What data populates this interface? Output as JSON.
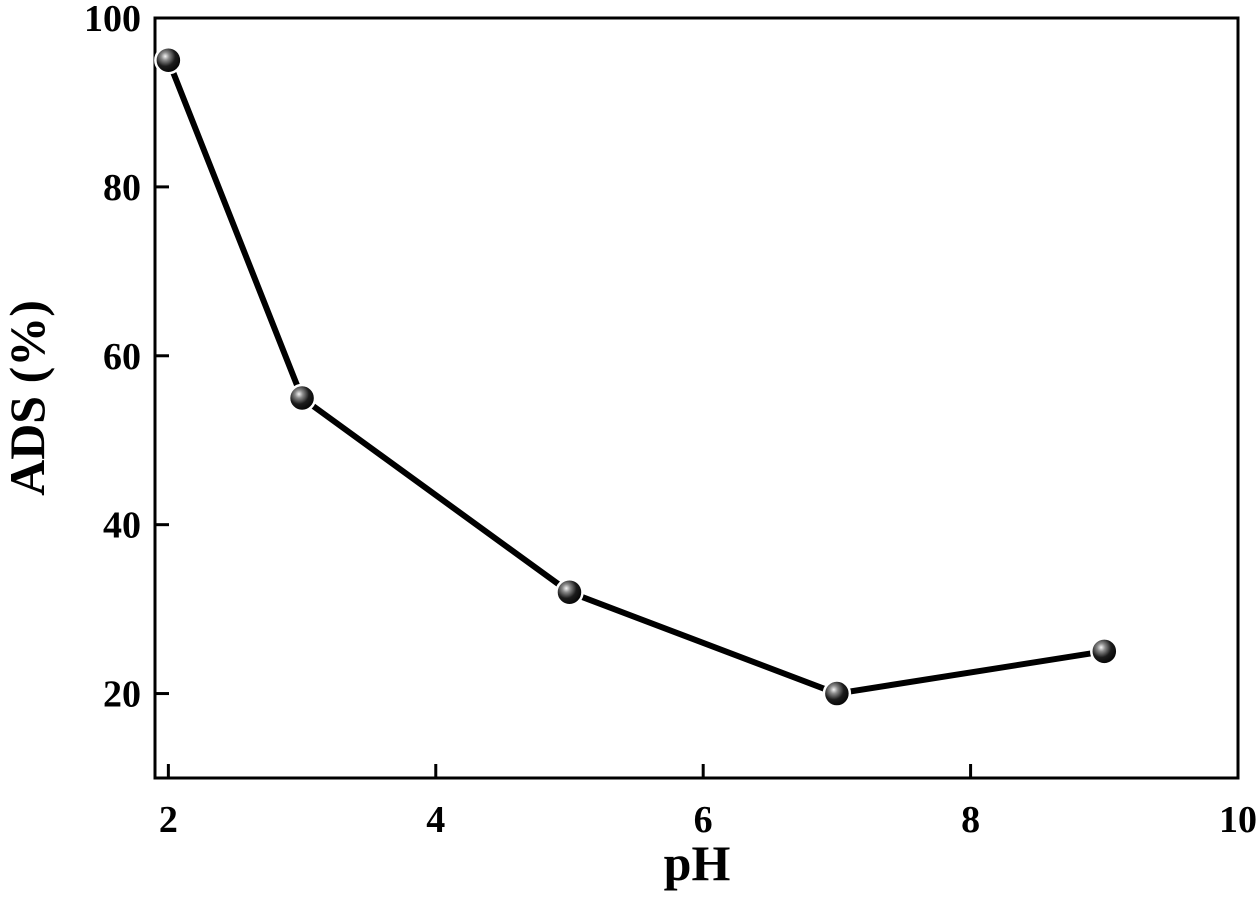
{
  "chart_data": {
    "type": "line",
    "title": "",
    "xlabel": "pH",
    "ylabel": "ADS (%)",
    "xlim": [
      1.9,
      10
    ],
    "ylim": [
      10,
      100
    ],
    "x_ticks": [
      2,
      4,
      6,
      8,
      10
    ],
    "y_ticks": [
      20,
      40,
      60,
      80,
      100
    ],
    "grid": false,
    "series": [
      {
        "x": [
          2,
          3,
          5,
          7,
          9
        ],
        "y": [
          95,
          55,
          32,
          20,
          25
        ],
        "color": "#000000",
        "marker": "sphere"
      }
    ]
  }
}
